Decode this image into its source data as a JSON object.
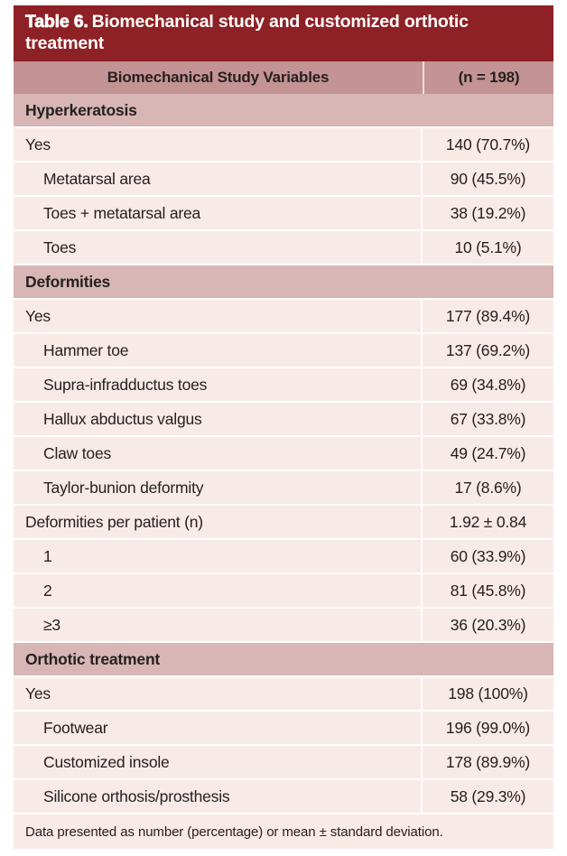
{
  "title": {
    "label": "Table 6.",
    "text": "Biomechanical study and customized orthotic treatment"
  },
  "columns": {
    "variable": "Biomechanical Study Variables",
    "n": "(n = 198)"
  },
  "sections": [
    {
      "header": "Hyperkeratosis",
      "rows": [
        {
          "label": "Yes",
          "value": "140 (70.7%)",
          "indent": false
        },
        {
          "label": "Metatarsal area",
          "value": "90 (45.5%)",
          "indent": true
        },
        {
          "label": "Toes + metatarsal area",
          "value": "38 (19.2%)",
          "indent": true
        },
        {
          "label": "Toes",
          "value": "10 (5.1%)",
          "indent": true
        }
      ]
    },
    {
      "header": "Deformities",
      "rows": [
        {
          "label": "Yes",
          "value": "177 (89.4%)",
          "indent": false
        },
        {
          "label": "Hammer toe",
          "value": "137 (69.2%)",
          "indent": true
        },
        {
          "label": "Supra-infradductus toes",
          "value": "69 (34.8%)",
          "indent": true
        },
        {
          "label": "Hallux abductus valgus",
          "value": "67 (33.8%)",
          "indent": true
        },
        {
          "label": "Claw toes",
          "value": "49 (24.7%)",
          "indent": true
        },
        {
          "label": "Taylor-bunion deformity",
          "value": "17 (8.6%)",
          "indent": true
        },
        {
          "label": "Deformities per patient (n)",
          "value": "1.92 ± 0.84",
          "indent": false
        },
        {
          "label": "1",
          "value": "60 (33.9%)",
          "indent": true
        },
        {
          "label": "2",
          "value": "81 (45.8%)",
          "indent": true
        },
        {
          "label": "≥3",
          "value": "36 (20.3%)",
          "indent": true
        }
      ]
    },
    {
      "header": "Orthotic treatment",
      "rows": [
        {
          "label": "Yes",
          "value": "198 (100%)",
          "indent": false
        },
        {
          "label": "Footwear",
          "value": "196 (99.0%)",
          "indent": true
        },
        {
          "label": "Customized insole",
          "value": "178 (89.9%)",
          "indent": true
        },
        {
          "label": "Silicone orthosis/prosthesis",
          "value": "58 (29.3%)",
          "indent": true
        }
      ]
    }
  ],
  "footnote": "Data presented as number (percentage) or mean ± standard deviation.",
  "colors": {
    "title_band": "#8d2126",
    "column_header_row": "#c49394",
    "section_band": "#d7b6b5",
    "data_row": "#f8eae7",
    "text": "#262021",
    "title_text": "#ffffff"
  }
}
